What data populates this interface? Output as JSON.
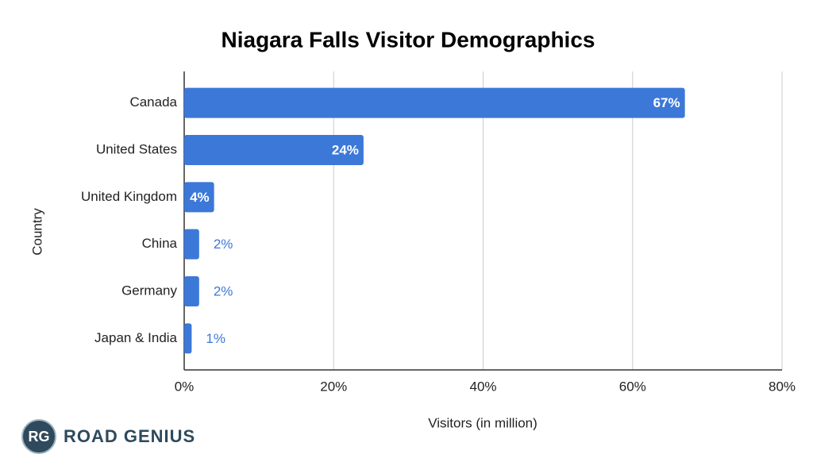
{
  "chart_data": {
    "type": "hbar",
    "title": "Niagara Falls Visitor Demographics",
    "x_label": "Visitors (in million)",
    "y_label": "Country",
    "categories": [
      "Canada",
      "United States",
      "United Kingdom",
      "China",
      "Germany",
      "Japan & India"
    ],
    "values": [
      67,
      24,
      4,
      2,
      2,
      1
    ],
    "value_labels": [
      "67%",
      "24%",
      "4%",
      "2%",
      "2%",
      "1%"
    ],
    "color": "#3c78d8",
    "xlim": [
      0,
      80
    ],
    "xticks": [
      {
        "value": 0,
        "label": "0%"
      },
      {
        "value": 20,
        "label": "20%"
      },
      {
        "value": 40,
        "label": "40%"
      },
      {
        "value": 60,
        "label": "60%"
      },
      {
        "value": 80,
        "label": "80%"
      }
    ],
    "grid": true
  },
  "brand": {
    "initials": "RG",
    "name": "ROAD GENIUS"
  }
}
